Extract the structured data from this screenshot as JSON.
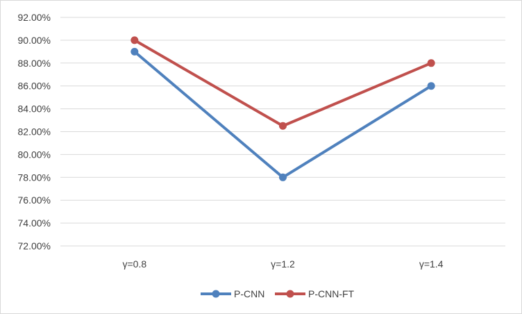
{
  "chart_data": {
    "type": "line",
    "categories": [
      "γ=0.8",
      "γ=1.2",
      "γ=1.4"
    ],
    "series": [
      {
        "name": "P-CNN",
        "values": [
          89.0,
          78.0,
          86.0
        ],
        "color": "#4f81bd"
      },
      {
        "name": "P-CNN-FT",
        "values": [
          90.0,
          82.5,
          88.0
        ],
        "color": "#c0504d"
      }
    ],
    "y_ticks": [
      "72.00%",
      "74.00%",
      "76.00%",
      "78.00%",
      "80.00%",
      "82.00%",
      "84.00%",
      "86.00%",
      "88.00%",
      "90.00%",
      "92.00%"
    ],
    "ylim": [
      72,
      92
    ],
    "y_step": 2,
    "grid": true,
    "legend_position": "bottom",
    "title": "",
    "xlabel": "",
    "ylabel": ""
  }
}
